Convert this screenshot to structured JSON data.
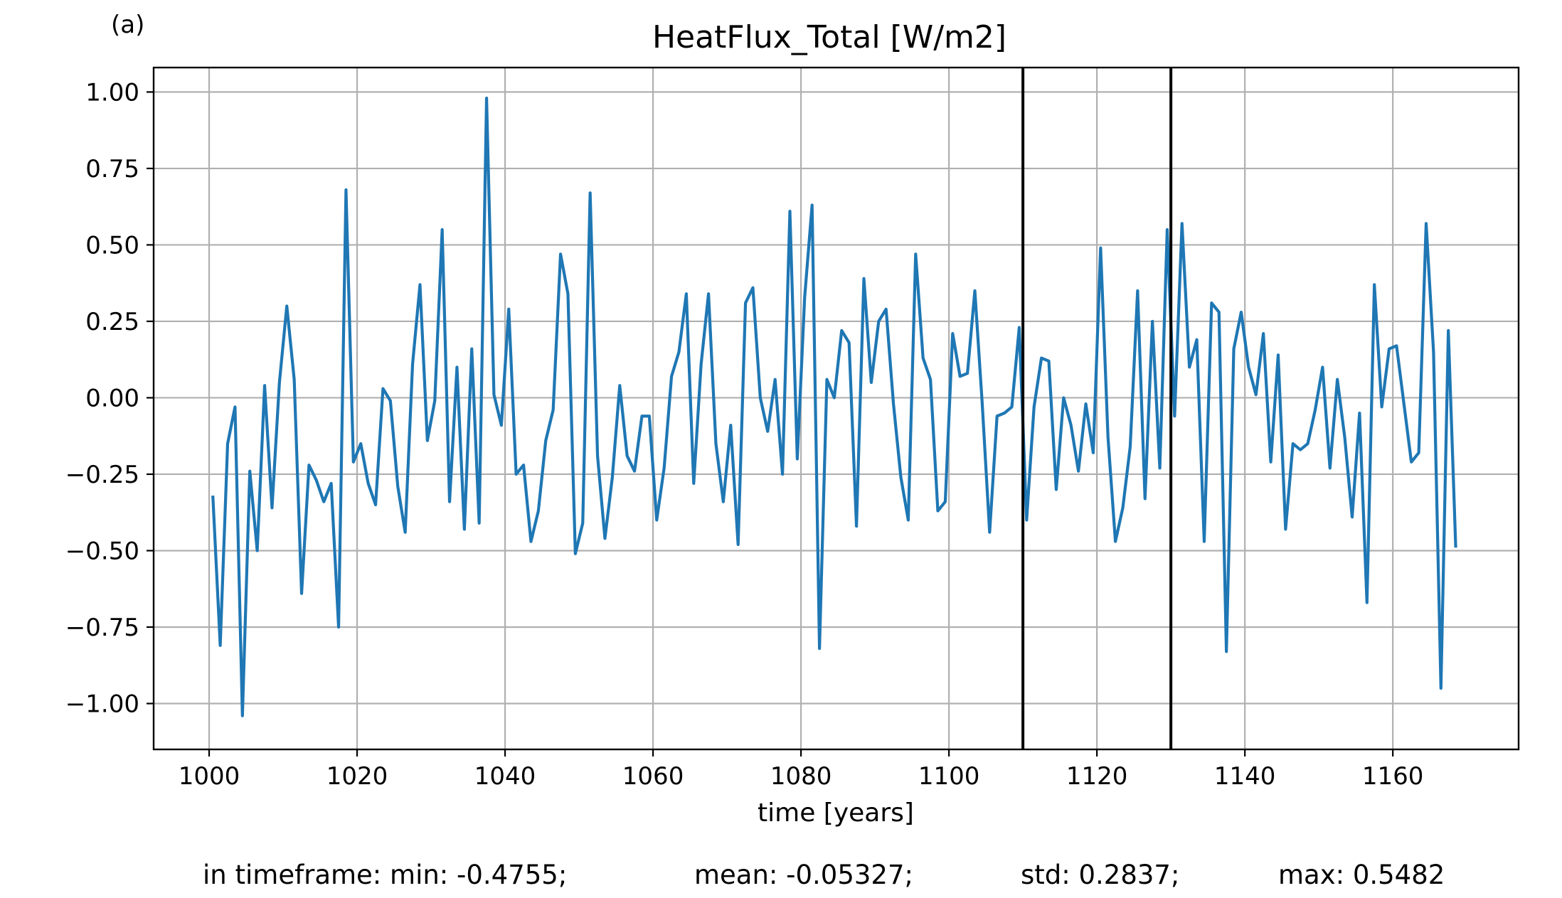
{
  "panel_label": "(a)",
  "stats": {
    "min_text": "in timeframe: min: -0.4755;",
    "mean_text": "mean: -0.05327;",
    "std_text": "std: 0.2837;",
    "max_text": "max: 0.5482"
  },
  "colors": {
    "series": "#1f77b4",
    "grid": "#b0b0b0",
    "markers": "#000000"
  },
  "chart_data": {
    "type": "line",
    "title": "HeatFlux_Total [W/m2]",
    "xlabel": "time [years]",
    "ylabel": "",
    "xlim": [
      992.5,
      1177
    ],
    "ylim": [
      -1.15,
      1.08
    ],
    "grid": true,
    "xticks": [
      1000,
      1020,
      1040,
      1060,
      1080,
      1100,
      1120,
      1140,
      1160
    ],
    "yticks": [
      1.0,
      0.75,
      0.5,
      0.25,
      0.0,
      -0.25,
      -0.5,
      -0.75,
      -1.0
    ],
    "ytick_labels": [
      "1.00",
      "0.75",
      "0.50",
      "0.25",
      "0.00",
      "−0.25",
      "−0.50",
      "−0.75",
      "−1.00"
    ],
    "vertical_lines": [
      1110,
      1130
    ],
    "x_start": 1000.5,
    "x_step": 1,
    "series": [
      {
        "values": [
          -0.32,
          -0.81,
          -0.15,
          -0.03,
          -1.04,
          -0.24,
          -0.5,
          0.04,
          -0.36,
          0.05,
          0.3,
          0.06,
          -0.64,
          -0.22,
          -0.27,
          -0.34,
          -0.28,
          -0.75,
          0.68,
          -0.21,
          -0.15,
          -0.28,
          -0.35,
          0.03,
          -0.01,
          -0.29,
          -0.44,
          0.11,
          0.37,
          -0.14,
          -0.01,
          0.55,
          -0.34,
          0.1,
          -0.43,
          0.16,
          -0.41,
          0.98,
          0.01,
          -0.09,
          0.29,
          -0.25,
          -0.22,
          -0.47,
          -0.37,
          -0.14,
          -0.04,
          0.47,
          0.34,
          -0.51,
          -0.41,
          0.67,
          -0.19,
          -0.46,
          -0.26,
          0.04,
          -0.19,
          -0.24,
          -0.06,
          -0.06,
          -0.4,
          -0.23,
          0.07,
          0.15,
          0.34,
          -0.28,
          0.11,
          0.34,
          -0.15,
          -0.34,
          -0.09,
          -0.48,
          0.31,
          0.36,
          0.0,
          -0.11,
          0.06,
          -0.25,
          0.61,
          -0.2,
          0.33,
          0.63,
          -0.82,
          0.06,
          0.0,
          0.22,
          0.18,
          -0.42,
          0.39,
          0.05,
          0.25,
          0.29,
          -0.02,
          -0.26,
          -0.4,
          0.47,
          0.13,
          0.06,
          -0.37,
          -0.34,
          0.21,
          0.07,
          0.08,
          0.35,
          -0.02,
          -0.44,
          -0.06,
          -0.05,
          -0.03,
          0.23,
          -0.4,
          -0.03,
          0.13,
          0.12,
          -0.3,
          0.0,
          -0.09,
          -0.24,
          -0.02,
          -0.18,
          0.49,
          -0.13,
          -0.47,
          -0.36,
          -0.16,
          0.35,
          -0.33,
          0.25,
          -0.23,
          0.55,
          -0.06,
          0.57,
          0.1,
          0.19,
          -0.47,
          0.31,
          0.28,
          -0.83,
          0.16,
          0.28,
          0.1,
          0.01,
          0.21,
          -0.21,
          0.14,
          -0.43,
          -0.15,
          -0.17,
          -0.15,
          -0.04,
          0.1,
          -0.23,
          0.06,
          -0.13,
          -0.39,
          -0.05,
          -0.67,
          0.37,
          -0.03,
          0.16,
          0.17,
          -0.02,
          -0.21,
          -0.18,
          0.57,
          0.15,
          -0.95,
          0.22,
          -0.49
        ]
      }
    ]
  }
}
